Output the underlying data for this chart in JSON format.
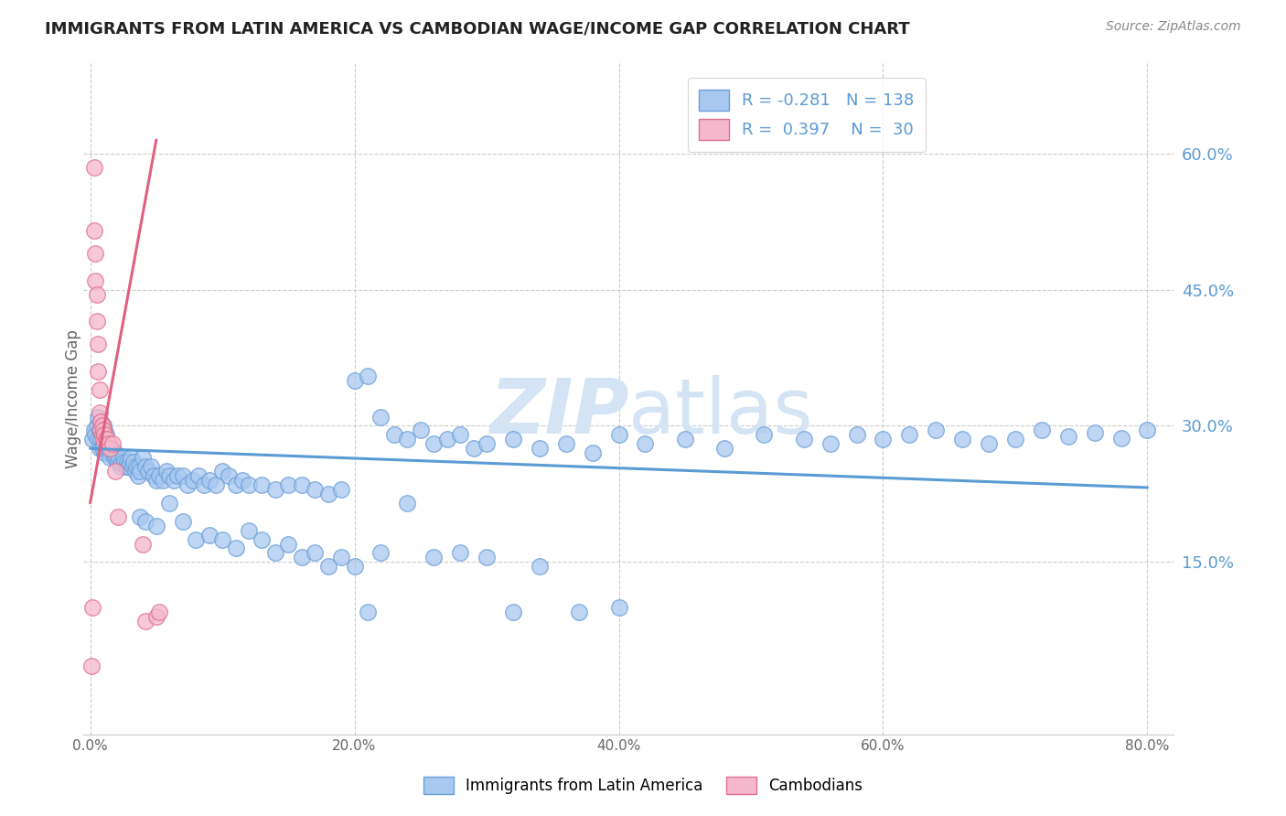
{
  "title": "IMMIGRANTS FROM LATIN AMERICA VS CAMBODIAN WAGE/INCOME GAP CORRELATION CHART",
  "source": "Source: ZipAtlas.com",
  "ylabel": "Wage/Income Gap",
  "right_yticks": [
    "60.0%",
    "45.0%",
    "30.0%",
    "15.0%"
  ],
  "right_ytick_vals": [
    0.6,
    0.45,
    0.3,
    0.15
  ],
  "xlim": [
    -0.005,
    0.82
  ],
  "ylim": [
    -0.04,
    0.7
  ],
  "legend_r_blue": "-0.281",
  "legend_n_blue": "138",
  "legend_r_pink": "0.397",
  "legend_n_pink": "30",
  "blue_color": "#a8c8f0",
  "blue_edge_color": "#6a9fd8",
  "pink_color": "#f5b8cc",
  "pink_edge_color": "#e07090",
  "blue_line_color": "#5b9bd5",
  "pink_line_color": "#e06080",
  "watermark_color": "#d4e4f5",
  "blue_trend_x0": 0.0,
  "blue_trend_x1": 0.8,
  "blue_trend_y0": 0.275,
  "blue_trend_y1": 0.232,
  "pink_trend_x0": 0.0,
  "pink_trend_x1": 0.05,
  "pink_trend_y0": 0.215,
  "pink_trend_y1": 0.615,
  "blue_scatter_x": [
    0.002,
    0.003,
    0.004,
    0.005,
    0.006,
    0.006,
    0.007,
    0.007,
    0.008,
    0.008,
    0.009,
    0.009,
    0.01,
    0.01,
    0.011,
    0.011,
    0.012,
    0.012,
    0.013,
    0.014,
    0.015,
    0.015,
    0.016,
    0.017,
    0.018,
    0.019,
    0.02,
    0.021,
    0.022,
    0.023,
    0.024,
    0.025,
    0.026,
    0.027,
    0.028,
    0.029,
    0.03,
    0.031,
    0.032,
    0.033,
    0.034,
    0.035,
    0.036,
    0.037,
    0.038,
    0.04,
    0.042,
    0.044,
    0.046,
    0.048,
    0.05,
    0.052,
    0.055,
    0.058,
    0.06,
    0.063,
    0.066,
    0.07,
    0.074,
    0.078,
    0.082,
    0.086,
    0.09,
    0.095,
    0.1,
    0.105,
    0.11,
    0.115,
    0.12,
    0.13,
    0.14,
    0.15,
    0.16,
    0.17,
    0.18,
    0.19,
    0.2,
    0.21,
    0.22,
    0.23,
    0.24,
    0.25,
    0.26,
    0.27,
    0.28,
    0.29,
    0.3,
    0.32,
    0.34,
    0.36,
    0.38,
    0.4,
    0.42,
    0.45,
    0.48,
    0.51,
    0.54,
    0.56,
    0.58,
    0.6,
    0.62,
    0.64,
    0.66,
    0.68,
    0.7,
    0.72,
    0.74,
    0.76,
    0.78,
    0.8,
    0.038,
    0.042,
    0.05,
    0.06,
    0.07,
    0.08,
    0.09,
    0.1,
    0.11,
    0.12,
    0.13,
    0.14,
    0.15,
    0.16,
    0.17,
    0.18,
    0.19,
    0.2,
    0.21,
    0.22,
    0.24,
    0.26,
    0.28,
    0.3,
    0.32,
    0.34,
    0.37,
    0.4
  ],
  "blue_scatter_y": [
    0.285,
    0.295,
    0.29,
    0.3,
    0.31,
    0.285,
    0.295,
    0.275,
    0.305,
    0.285,
    0.29,
    0.275,
    0.3,
    0.28,
    0.295,
    0.27,
    0.29,
    0.275,
    0.28,
    0.275,
    0.27,
    0.265,
    0.275,
    0.27,
    0.265,
    0.27,
    0.265,
    0.26,
    0.265,
    0.255,
    0.26,
    0.265,
    0.26,
    0.255,
    0.26,
    0.255,
    0.26,
    0.265,
    0.255,
    0.26,
    0.25,
    0.255,
    0.245,
    0.255,
    0.25,
    0.265,
    0.255,
    0.25,
    0.255,
    0.245,
    0.24,
    0.245,
    0.24,
    0.25,
    0.245,
    0.24,
    0.245,
    0.245,
    0.235,
    0.24,
    0.245,
    0.235,
    0.24,
    0.235,
    0.25,
    0.245,
    0.235,
    0.24,
    0.235,
    0.235,
    0.23,
    0.235,
    0.235,
    0.23,
    0.225,
    0.23,
    0.35,
    0.355,
    0.31,
    0.29,
    0.285,
    0.295,
    0.28,
    0.285,
    0.29,
    0.275,
    0.28,
    0.285,
    0.275,
    0.28,
    0.27,
    0.29,
    0.28,
    0.285,
    0.275,
    0.29,
    0.285,
    0.28,
    0.29,
    0.285,
    0.29,
    0.295,
    0.285,
    0.28,
    0.285,
    0.295,
    0.288,
    0.292,
    0.286,
    0.295,
    0.2,
    0.195,
    0.19,
    0.215,
    0.195,
    0.175,
    0.18,
    0.175,
    0.165,
    0.185,
    0.175,
    0.16,
    0.17,
    0.155,
    0.16,
    0.145,
    0.155,
    0.145,
    0.095,
    0.16,
    0.215,
    0.155,
    0.16,
    0.155,
    0.095,
    0.145,
    0.095,
    0.1
  ],
  "pink_scatter_x": [
    0.001,
    0.002,
    0.003,
    0.003,
    0.004,
    0.004,
    0.005,
    0.005,
    0.006,
    0.006,
    0.007,
    0.007,
    0.008,
    0.008,
    0.009,
    0.009,
    0.01,
    0.01,
    0.011,
    0.012,
    0.013,
    0.014,
    0.015,
    0.017,
    0.019,
    0.021,
    0.04,
    0.042,
    0.05,
    0.052
  ],
  "pink_scatter_y": [
    0.035,
    0.1,
    0.585,
    0.515,
    0.49,
    0.46,
    0.445,
    0.415,
    0.39,
    0.36,
    0.34,
    0.315,
    0.305,
    0.295,
    0.3,
    0.29,
    0.295,
    0.285,
    0.29,
    0.285,
    0.285,
    0.28,
    0.275,
    0.28,
    0.25,
    0.2,
    0.17,
    0.085,
    0.09,
    0.095
  ]
}
